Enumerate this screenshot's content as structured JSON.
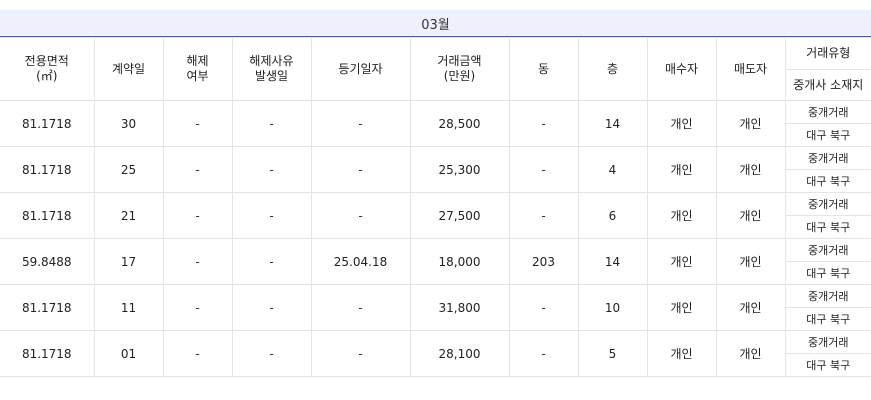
{
  "month_label": "03월",
  "headers": {
    "area": "전용면적\n(㎡)",
    "contract_day": "계약일",
    "cancel": "해제\n여부",
    "cancel_reason_date": "해제사유\n발생일",
    "registration_date": "등기일자",
    "price": "거래금액\n(만원)",
    "dong": "동",
    "floor": "층",
    "buyer": "매수자",
    "seller": "매도자",
    "deal_type": "거래유형",
    "agent_location": "중개사 소재지"
  },
  "rows": [
    {
      "area": "81.1718",
      "day": "30",
      "cancel": "-",
      "cancel_date": "-",
      "reg_date": "-",
      "price": "28,500",
      "dong": "-",
      "floor": "14",
      "buyer": "개인",
      "seller": "개인",
      "deal_type": "중개거래",
      "agent_loc": "대구 북구"
    },
    {
      "area": "81.1718",
      "day": "25",
      "cancel": "-",
      "cancel_date": "-",
      "reg_date": "-",
      "price": "25,300",
      "dong": "-",
      "floor": "4",
      "buyer": "개인",
      "seller": "개인",
      "deal_type": "중개거래",
      "agent_loc": "대구 북구"
    },
    {
      "area": "81.1718",
      "day": "21",
      "cancel": "-",
      "cancel_date": "-",
      "reg_date": "-",
      "price": "27,500",
      "dong": "-",
      "floor": "6",
      "buyer": "개인",
      "seller": "개인",
      "deal_type": "중개거래",
      "agent_loc": "대구 북구"
    },
    {
      "area": "59.8488",
      "day": "17",
      "cancel": "-",
      "cancel_date": "-",
      "reg_date": "25.04.18",
      "price": "18,000",
      "dong": "203",
      "floor": "14",
      "buyer": "개인",
      "seller": "개인",
      "deal_type": "중개거래",
      "agent_loc": "대구 북구"
    },
    {
      "area": "81.1718",
      "day": "11",
      "cancel": "-",
      "cancel_date": "-",
      "reg_date": "-",
      "price": "31,800",
      "dong": "-",
      "floor": "10",
      "buyer": "개인",
      "seller": "개인",
      "deal_type": "중개거래",
      "agent_loc": "대구 북구"
    },
    {
      "area": "81.1718",
      "day": "01",
      "cancel": "-",
      "cancel_date": "-",
      "reg_date": "-",
      "price": "28,100",
      "dong": "-",
      "floor": "5",
      "buyer": "개인",
      "seller": "개인",
      "deal_type": "중개거래",
      "agent_loc": "대구 북구"
    }
  ]
}
